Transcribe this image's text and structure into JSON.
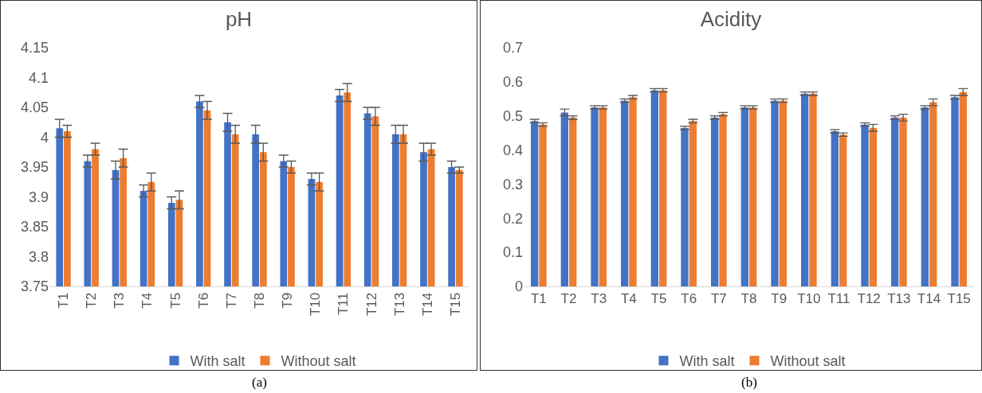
{
  "chart_data": [
    {
      "type": "bar",
      "title": "pH",
      "categories": [
        "T1",
        "T2",
        "T3",
        "T4",
        "T5",
        "T6",
        "T7",
        "T8",
        "T9",
        "T10",
        "T11",
        "T12",
        "T13",
        "T14",
        "T15"
      ],
      "series": [
        {
          "name": "With salt",
          "color": "#4472c4",
          "values": [
            4.015,
            3.96,
            3.945,
            3.91,
            3.89,
            4.06,
            4.025,
            4.005,
            3.96,
            3.93,
            4.07,
            4.04,
            4.005,
            3.975,
            3.95
          ],
          "errors": [
            0.015,
            0.01,
            0.015,
            0.01,
            0.01,
            0.01,
            0.015,
            0.015,
            0.01,
            0.01,
            0.01,
            0.01,
            0.015,
            0.015,
            0.01
          ]
        },
        {
          "name": "Without salt",
          "color": "#ed7d31",
          "values": [
            4.01,
            3.98,
            3.965,
            3.925,
            3.895,
            4.045,
            4.005,
            3.975,
            3.95,
            3.925,
            4.075,
            4.035,
            4.005,
            3.98,
            3.945
          ],
          "errors": [
            0.01,
            0.01,
            0.015,
            0.015,
            0.015,
            0.015,
            0.015,
            0.015,
            0.01,
            0.015,
            0.015,
            0.015,
            0.015,
            0.01,
            0.005
          ]
        }
      ],
      "ylim": [
        3.75,
        4.15
      ],
      "yticks": [
        3.75,
        3.8,
        3.85,
        3.9,
        3.95,
        4,
        4.05,
        4.1,
        4.15
      ],
      "grid": false,
      "legend": "bottom",
      "annotations": [
        "(a)"
      ]
    },
    {
      "type": "bar",
      "title": "Acidity",
      "categories": [
        "T1",
        "T2",
        "T3",
        "T4",
        "T5",
        "T6",
        "T7",
        "T8",
        "T9",
        "T10",
        "T11",
        "T12",
        "T13",
        "T14",
        "T15"
      ],
      "series": [
        {
          "name": "With salt",
          "color": "#4472c4",
          "values": [
            0.485,
            0.51,
            0.525,
            0.545,
            0.575,
            0.465,
            0.495,
            0.525,
            0.545,
            0.565,
            0.455,
            0.475,
            0.495,
            0.525,
            0.555
          ],
          "errors": [
            0.005,
            0.01,
            0.005,
            0.005,
            0.005,
            0.005,
            0.005,
            0.005,
            0.005,
            0.005,
            0.005,
            0.005,
            0.005,
            0.005,
            0.005
          ]
        },
        {
          "name": "Without salt",
          "color": "#ed7d31",
          "values": [
            0.475,
            0.495,
            0.525,
            0.555,
            0.575,
            0.485,
            0.505,
            0.525,
            0.545,
            0.565,
            0.445,
            0.465,
            0.495,
            0.54,
            0.57
          ],
          "errors": [
            0.005,
            0.005,
            0.005,
            0.005,
            0.005,
            0.005,
            0.005,
            0.005,
            0.005,
            0.005,
            0.005,
            0.01,
            0.01,
            0.01,
            0.01
          ]
        }
      ],
      "ylim": [
        0,
        0.7
      ],
      "yticks": [
        0,
        0.1,
        0.2,
        0.3,
        0.4,
        0.5,
        0.6,
        0.7
      ],
      "grid": false,
      "legend": "bottom",
      "annotations": [
        "(b)"
      ]
    }
  ]
}
